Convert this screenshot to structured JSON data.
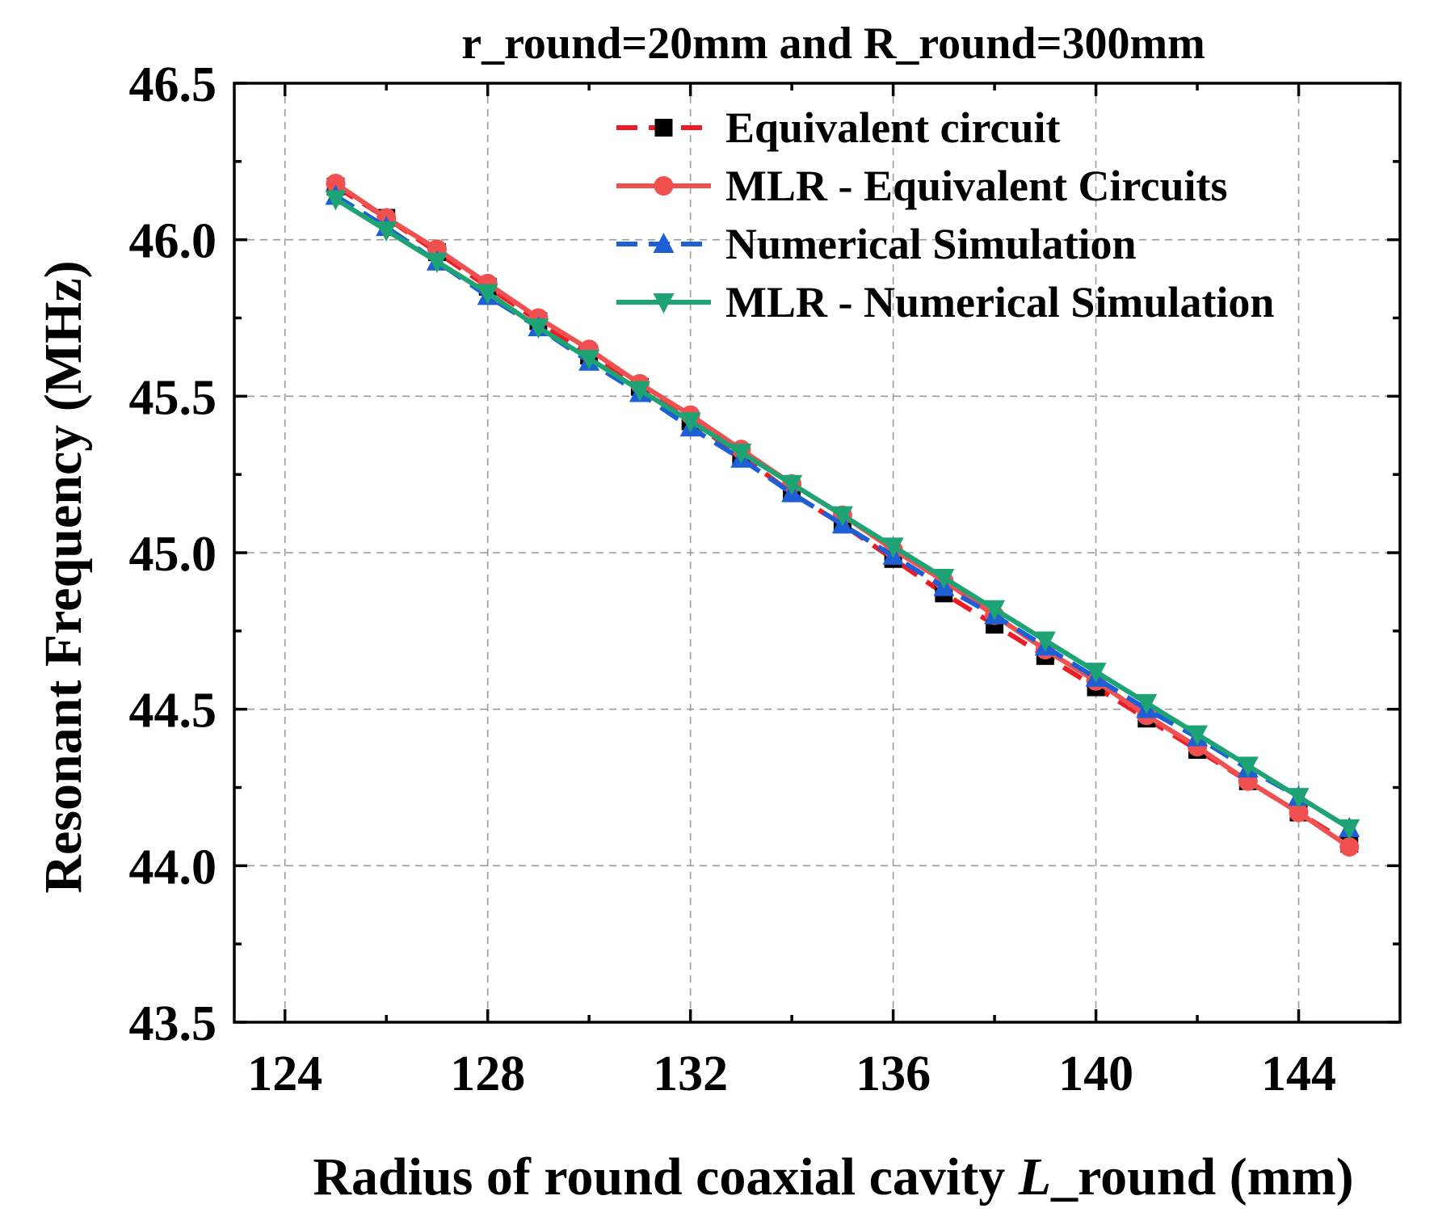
{
  "chart_data": {
    "type": "line",
    "title": "r_round=20mm and R_round=300mm",
    "xlabel_parts": [
      "Radius of round coaxial cavity ",
      "L",
      "_round (mm)"
    ],
    "ylabel": "Resonant Frequency (MHz)",
    "xlim": [
      123,
      146
    ],
    "ylim": [
      43.5,
      46.5
    ],
    "xticks": [
      124,
      128,
      132,
      136,
      140,
      144
    ],
    "yticks": [
      43.5,
      44.0,
      44.5,
      45.0,
      45.5,
      46.0,
      46.5
    ],
    "ytick_labels": [
      "43.5",
      "44.0",
      "44.5",
      "45.0",
      "45.5",
      "46.0",
      "46.5"
    ],
    "grid": true,
    "legend_position": "top-right",
    "x": [
      125,
      126,
      127,
      128,
      129,
      130,
      131,
      132,
      133,
      134,
      135,
      136,
      137,
      138,
      139,
      140,
      141,
      142,
      143,
      144,
      145
    ],
    "series": [
      {
        "name": "Equivalent circuit",
        "color": "#ee1c25",
        "marker": "square",
        "marker_color": "#000000",
        "line": "dashed",
        "values": [
          46.17,
          46.07,
          45.96,
          45.85,
          45.74,
          45.63,
          45.53,
          45.42,
          45.31,
          45.19,
          45.09,
          44.98,
          44.87,
          44.77,
          44.67,
          44.57,
          44.47,
          44.37,
          44.27,
          44.17,
          44.07
        ]
      },
      {
        "name": "MLR - Equivalent Circuits",
        "color": "#f15050",
        "marker": "circle",
        "marker_color": "#f15050",
        "line": "solid",
        "values": [
          46.18,
          46.07,
          45.97,
          45.86,
          45.75,
          45.65,
          45.54,
          45.44,
          45.33,
          45.22,
          45.12,
          45.01,
          44.91,
          44.8,
          44.69,
          44.59,
          44.48,
          44.38,
          44.27,
          44.17,
          44.06
        ]
      },
      {
        "name": "Numerical Simulation",
        "color": "#1f5fd6",
        "marker": "triangle-up",
        "marker_color": "#1f5fd6",
        "line": "dashed",
        "values": [
          46.14,
          46.04,
          45.93,
          45.82,
          45.72,
          45.61,
          45.51,
          45.4,
          45.3,
          45.19,
          45.09,
          44.99,
          44.89,
          44.8,
          44.7,
          44.6,
          44.5,
          44.41,
          44.31,
          44.22,
          44.12
        ]
      },
      {
        "name": "MLR - Numerical Simulation",
        "color": "#1ea374",
        "marker": "triangle-down",
        "marker_color": "#1ea374",
        "line": "solid",
        "values": [
          46.13,
          46.03,
          45.93,
          45.83,
          45.72,
          45.62,
          45.52,
          45.42,
          45.32,
          45.22,
          45.12,
          45.02,
          44.92,
          44.82,
          44.72,
          44.62,
          44.52,
          44.42,
          44.32,
          44.22,
          44.12
        ]
      }
    ]
  }
}
